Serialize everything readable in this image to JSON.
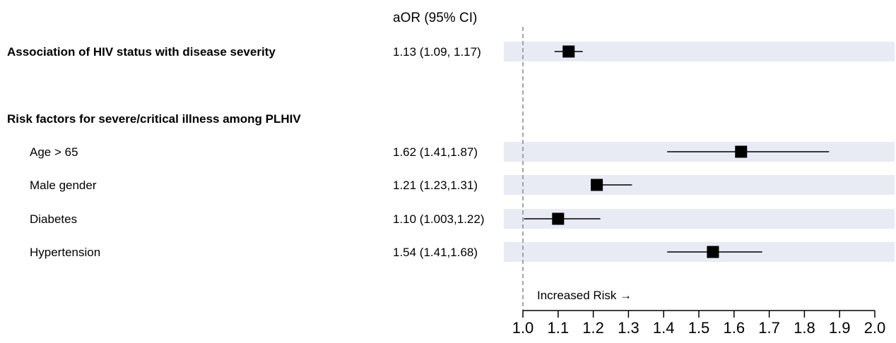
{
  "chart_data": {
    "type": "forest",
    "column_header": "aOR (95% CI)",
    "reference_value": 1.0,
    "xlim": [
      1.0,
      2.0
    ],
    "x_ticks": [
      1.0,
      1.1,
      1.2,
      1.3,
      1.4,
      1.5,
      1.6,
      1.7,
      1.8,
      1.9,
      2.0
    ],
    "x_tick_labels": [
      "1.0",
      "1.1",
      "1.2",
      "1.3",
      "1.4",
      "1.5",
      "1.6",
      "1.7",
      "1.8",
      "1.9",
      "2.0"
    ],
    "annotation": "Increased Risk →",
    "rows": [
      {
        "kind": "estimate",
        "bold": true,
        "indent": false,
        "label": "Association of HIV status with disease severity",
        "ci_text": "1.13 (1.09, 1.17)",
        "estimate": 1.13,
        "lower": 1.09,
        "upper": 1.17
      },
      {
        "kind": "header",
        "bold": true,
        "indent": false,
        "label": "Risk factors for severe/critical illness among PLHIV"
      },
      {
        "kind": "estimate",
        "bold": false,
        "indent": true,
        "label": "Age > 65",
        "ci_text": "1.62 (1.41,1.87)",
        "estimate": 1.62,
        "lower": 1.41,
        "upper": 1.87
      },
      {
        "kind": "estimate",
        "bold": false,
        "indent": true,
        "label": "Male gender",
        "ci_text": "1.21 (1.23,1.31)",
        "estimate": 1.21,
        "lower": 1.23,
        "upper": 1.31
      },
      {
        "kind": "estimate",
        "bold": false,
        "indent": true,
        "label": "Diabetes",
        "ci_text": "1.10 (1.003,1.22)",
        "estimate": 1.1,
        "lower": 1.003,
        "upper": 1.22
      },
      {
        "kind": "estimate",
        "bold": false,
        "indent": true,
        "label": "Hypertension",
        "ci_text": "1.54 (1.41,1.68)",
        "estimate": 1.54,
        "lower": 1.41,
        "upper": 1.68
      }
    ],
    "colors": {
      "row_band": "#e8eaf4",
      "marker": "#000000",
      "reference_line": "#8a8a8a"
    }
  }
}
